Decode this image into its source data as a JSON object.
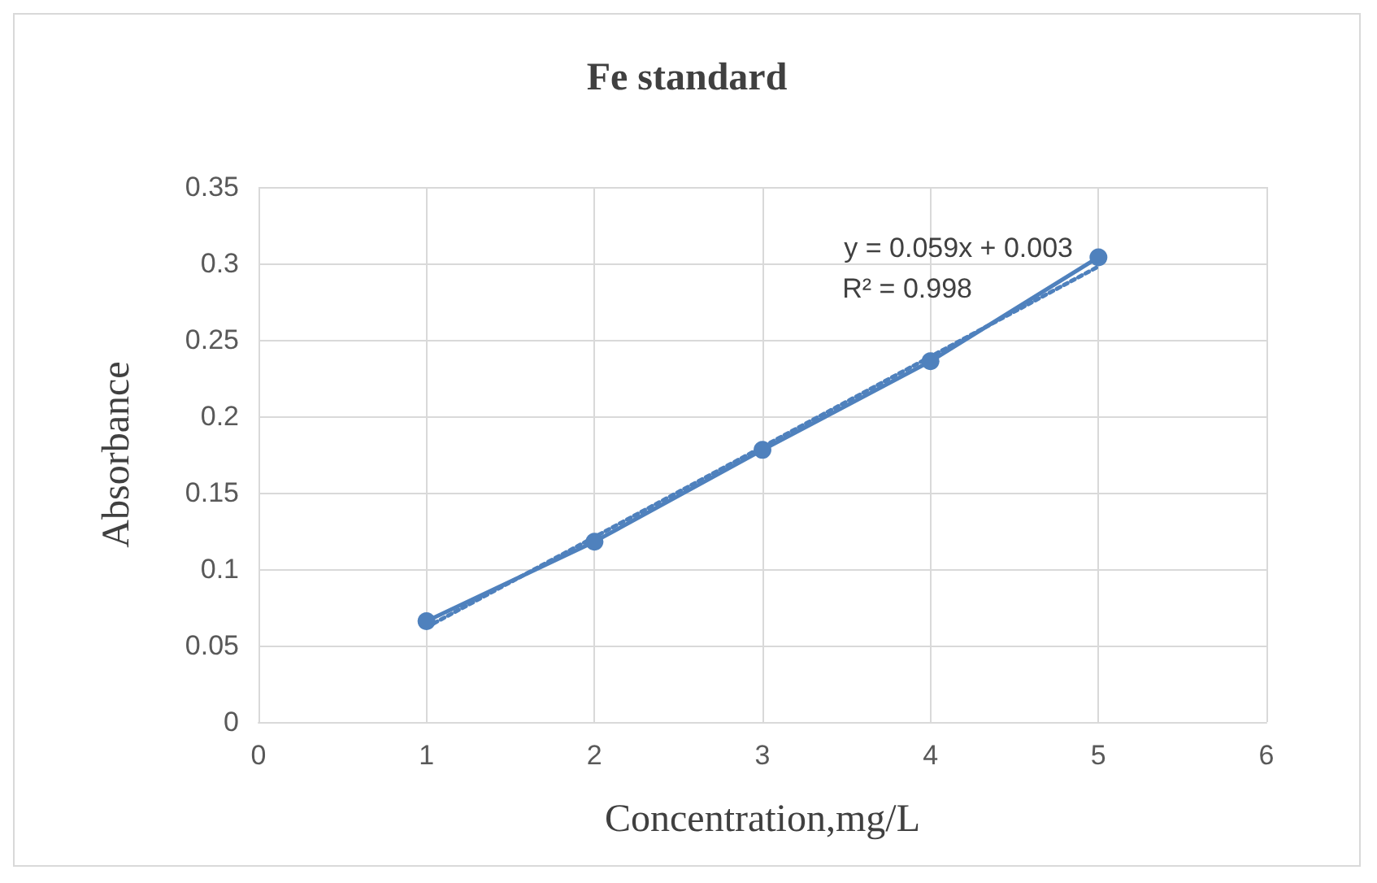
{
  "chart_data": {
    "type": "line",
    "title": "Fe standard",
    "xlabel": "Concentration,mg/L",
    "ylabel": "Absorbance",
    "x": [
      1,
      2,
      3,
      4,
      5
    ],
    "series": [
      {
        "color": "#4f81bd",
        "marker": "circle",
        "line_style": "solid",
        "values": [
          0.066,
          0.118,
          0.178,
          0.236,
          0.304
        ]
      },
      {
        "color": "#4f81bd",
        "marker": "none",
        "line_style": "dotted",
        "x": [
          1,
          5
        ],
        "values": [
          0.062,
          0.298
        ]
      }
    ],
    "annotations": [
      "y = 0.059x + 0.003",
      "R² = 0.998"
    ],
    "xlim": [
      0,
      6
    ],
    "xticks": [
      0,
      1,
      2,
      3,
      4,
      5,
      6
    ],
    "ylim": [
      0,
      0.35
    ],
    "yticks": [
      0,
      0.05,
      0.1,
      0.15,
      0.2,
      0.25,
      0.3,
      0.35
    ],
    "grid": true
  }
}
